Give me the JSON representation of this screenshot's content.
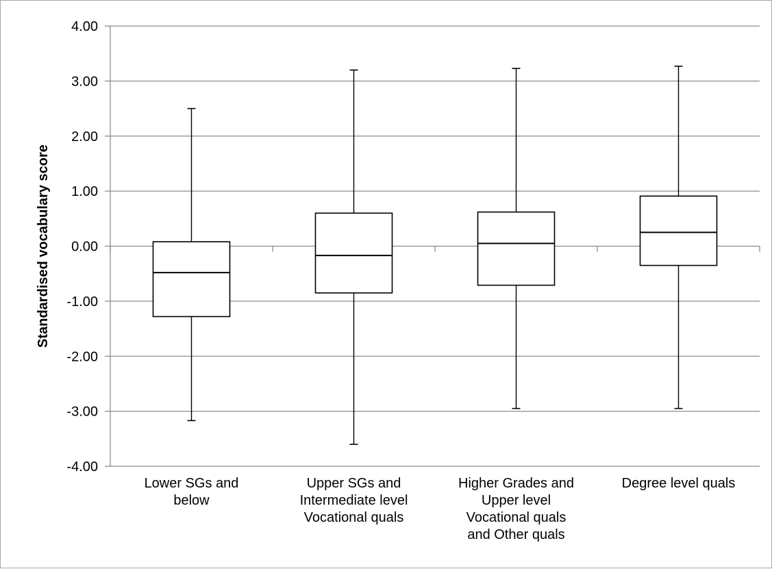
{
  "chart_data": {
    "type": "box",
    "title": "",
    "xlabel": "",
    "ylabel": "Standardised vocabulary score",
    "ylim": [
      -4,
      4
    ],
    "yticks": [
      4,
      3,
      2,
      1,
      0,
      -1,
      -2,
      -3,
      -4
    ],
    "ytick_labels": [
      "4.00",
      "3.00",
      "2.00",
      "1.00",
      "0.00",
      "-1.00",
      "-2.00",
      "-3.00",
      "-4.00"
    ],
    "grid": true,
    "legend": "none",
    "categories": [
      [
        "Lower SGs and",
        "below"
      ],
      [
        "Upper SGs and",
        "Intermediate level",
        "Vocational quals"
      ],
      [
        "Higher Grades and",
        "Upper level",
        "Vocational quals",
        "and Other quals"
      ],
      [
        "Degree level quals"
      ]
    ],
    "boxes": [
      {
        "min": -3.17,
        "q1": -1.28,
        "median": -0.48,
        "q3": 0.08,
        "max": 2.5
      },
      {
        "min": -3.6,
        "q1": -0.85,
        "median": -0.17,
        "q3": 0.6,
        "max": 3.2
      },
      {
        "min": -2.95,
        "q1": -0.71,
        "median": 0.05,
        "q3": 0.62,
        "max": 3.23
      },
      {
        "min": -2.95,
        "q1": -0.35,
        "median": 0.25,
        "q3": 0.91,
        "max": 3.27
      }
    ],
    "colors": {
      "box_fill": "#ffffff",
      "line": "#000000",
      "grid": "#8c8c8c"
    }
  }
}
